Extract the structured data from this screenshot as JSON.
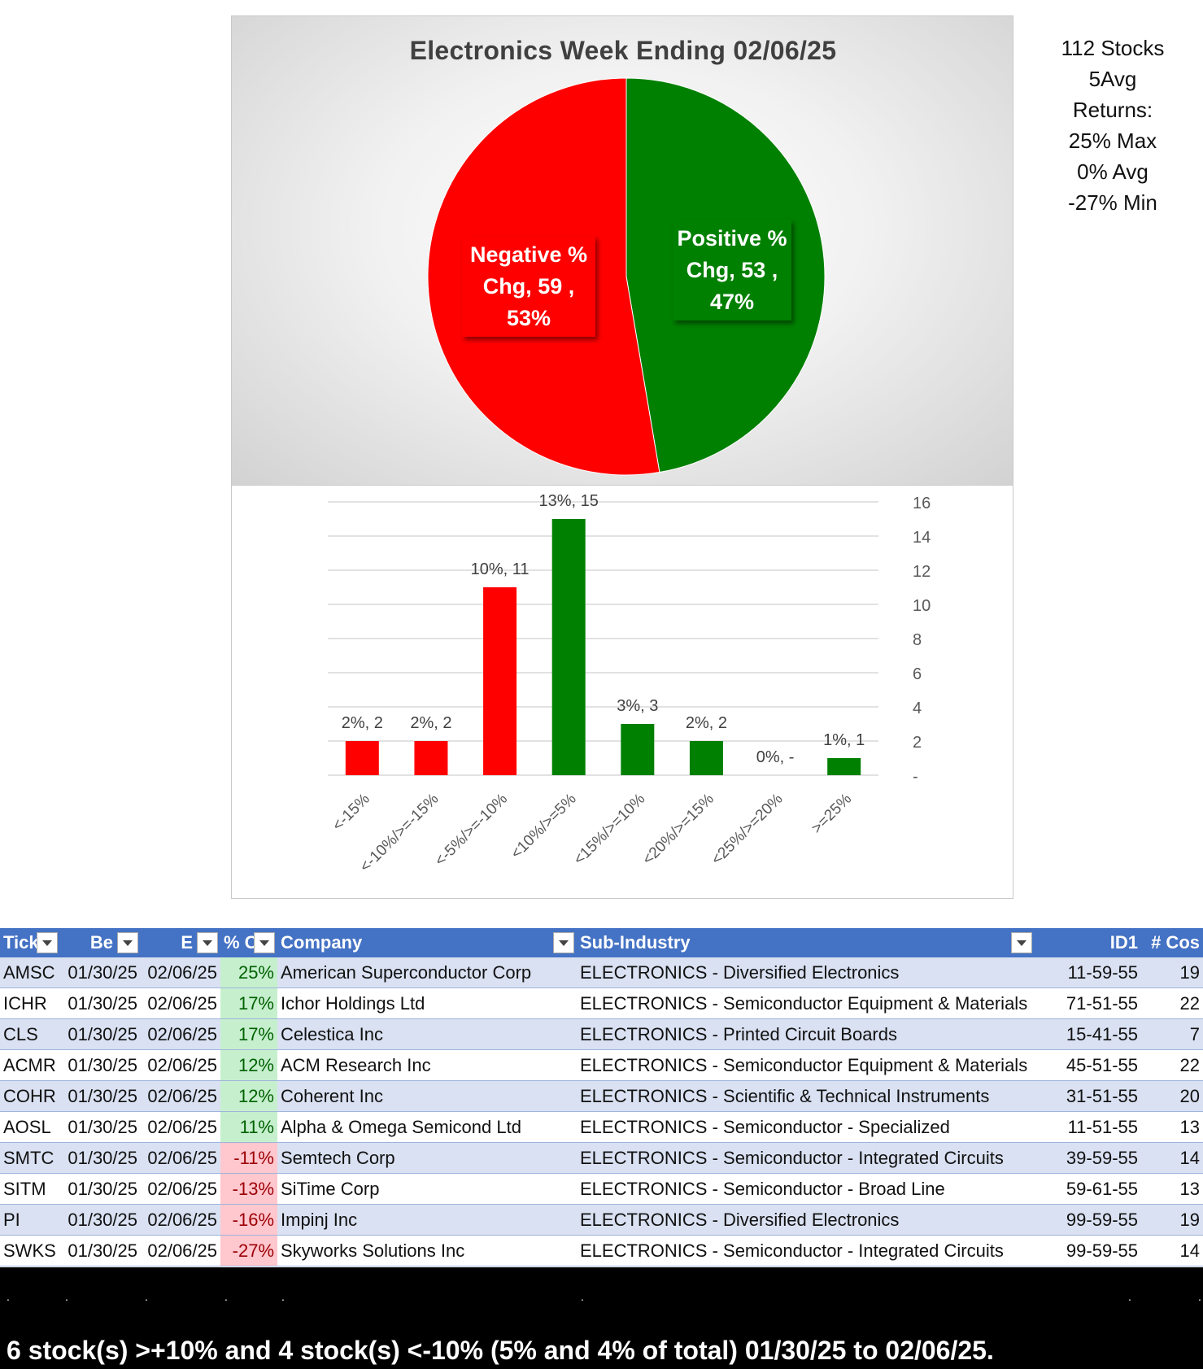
{
  "chart_data": [
    {
      "type": "pie",
      "title": "Electronics Week Ending 02/06/25",
      "slices": [
        {
          "name": "Positive % Chg",
          "value": 53,
          "percent": "47%",
          "color": "#008000"
        },
        {
          "name": "Negative % Chg",
          "value": 59,
          "percent": "53%",
          "color": "#ff0000"
        }
      ],
      "labels": [
        {
          "lines": [
            "Positive %",
            "Chg,  53 ,",
            "47%"
          ]
        },
        {
          "lines": [
            "Negative %",
            "Chg,  59 ,",
            "53%"
          ]
        }
      ]
    },
    {
      "type": "bar",
      "categories": [
        "<-15%",
        "<-10%/>=-15%",
        "<-5%/>=-10%",
        "<10%/>=5%",
        "<15%/>=10%",
        "<20%/>=15%",
        "<25%/>=20%",
        ">=25%"
      ],
      "values": [
        2,
        2,
        11,
        15,
        3,
        2,
        0,
        1
      ],
      "data_labels": [
        "2%,  2",
        "2%,  2",
        "10%,  11",
        "13%,  15",
        "3%,  3",
        "2%,  2",
        "0%,  -",
        "1%,  1"
      ],
      "colors": [
        "#ff0000",
        "#ff0000",
        "#ff0000",
        "#008000",
        "#008000",
        "#008000",
        "#008000",
        "#008000"
      ],
      "ylim": [
        0,
        16
      ],
      "yticks": [
        0,
        2,
        4,
        6,
        8,
        10,
        12,
        14,
        16
      ],
      "ytick_labels": [
        "-",
        "2",
        "4",
        "6",
        "8",
        "10",
        "12",
        "14",
        "16"
      ],
      "grid": true,
      "y_axis_side": "right"
    }
  ],
  "stats": [
    "112 Stocks",
    "5Avg",
    "Returns:",
    "25% Max",
    "0% Avg",
    "-27% Min"
  ],
  "table": {
    "headers": [
      "Tick",
      "Be",
      "E",
      "% C",
      "Company",
      "Sub-Industry",
      "ID1",
      "# Cos"
    ],
    "rows": [
      {
        "ticker": "AMSC",
        "begin": "01/30/25",
        "end": "02/06/25",
        "pct": "25%",
        "sign": "pos",
        "company": "American Superconductor Corp",
        "sub": "ELECTRONICS - Diversified Electronics",
        "id1": "11-59-55",
        "cos": "19"
      },
      {
        "ticker": "ICHR",
        "begin": "01/30/25",
        "end": "02/06/25",
        "pct": "17%",
        "sign": "pos",
        "company": "Ichor Holdings Ltd",
        "sub": "ELECTRONICS - Semiconductor Equipment & Materials",
        "id1": "71-51-55",
        "cos": "22"
      },
      {
        "ticker": "CLS",
        "begin": "01/30/25",
        "end": "02/06/25",
        "pct": "17%",
        "sign": "pos",
        "company": "Celestica Inc",
        "sub": "ELECTRONICS - Printed Circuit Boards",
        "id1": "15-41-55",
        "cos": "7"
      },
      {
        "ticker": "ACMR",
        "begin": "01/30/25",
        "end": "02/06/25",
        "pct": "12%",
        "sign": "pos",
        "company": "ACM Research Inc",
        "sub": "ELECTRONICS - Semiconductor Equipment & Materials",
        "id1": "45-51-55",
        "cos": "22"
      },
      {
        "ticker": "COHR",
        "begin": "01/30/25",
        "end": "02/06/25",
        "pct": "12%",
        "sign": "pos",
        "company": "Coherent Inc",
        "sub": "ELECTRONICS - Scientific & Technical Instruments",
        "id1": "31-51-55",
        "cos": "20"
      },
      {
        "ticker": "AOSL",
        "begin": "01/30/25",
        "end": "02/06/25",
        "pct": "11%",
        "sign": "pos",
        "company": "Alpha & Omega Semicond Ltd",
        "sub": "ELECTRONICS - Semiconductor - Specialized",
        "id1": "11-51-55",
        "cos": "13"
      },
      {
        "ticker": "SMTC",
        "begin": "01/30/25",
        "end": "02/06/25",
        "pct": "-11%",
        "sign": "neg",
        "company": "Semtech Corp",
        "sub": "ELECTRONICS - Semiconductor - Integrated Circuits",
        "id1": "39-59-55",
        "cos": "14"
      },
      {
        "ticker": "SITM",
        "begin": "01/30/25",
        "end": "02/06/25",
        "pct": "-13%",
        "sign": "neg",
        "company": "SiTime Corp",
        "sub": "ELECTRONICS - Semiconductor - Broad Line",
        "id1": "59-61-55",
        "cos": "13"
      },
      {
        "ticker": "PI",
        "begin": "01/30/25",
        "end": "02/06/25",
        "pct": "-16%",
        "sign": "neg",
        "company": "Impinj Inc",
        "sub": "ELECTRONICS - Diversified Electronics",
        "id1": "99-59-55",
        "cos": "19"
      },
      {
        "ticker": "SWKS",
        "begin": "01/30/25",
        "end": "02/06/25",
        "pct": "-27%",
        "sign": "neg",
        "company": "Skyworks Solutions Inc",
        "sub": "ELECTRONICS - Semiconductor - Integrated Circuits",
        "id1": "99-59-55",
        "cos": "14"
      }
    ]
  },
  "footer": {
    "summary": "6 stock(s) >+10% and 4 stock(s) <-10% (5% and 4% of total) 01/30/25 to 02/06/25.",
    "dot": "."
  }
}
